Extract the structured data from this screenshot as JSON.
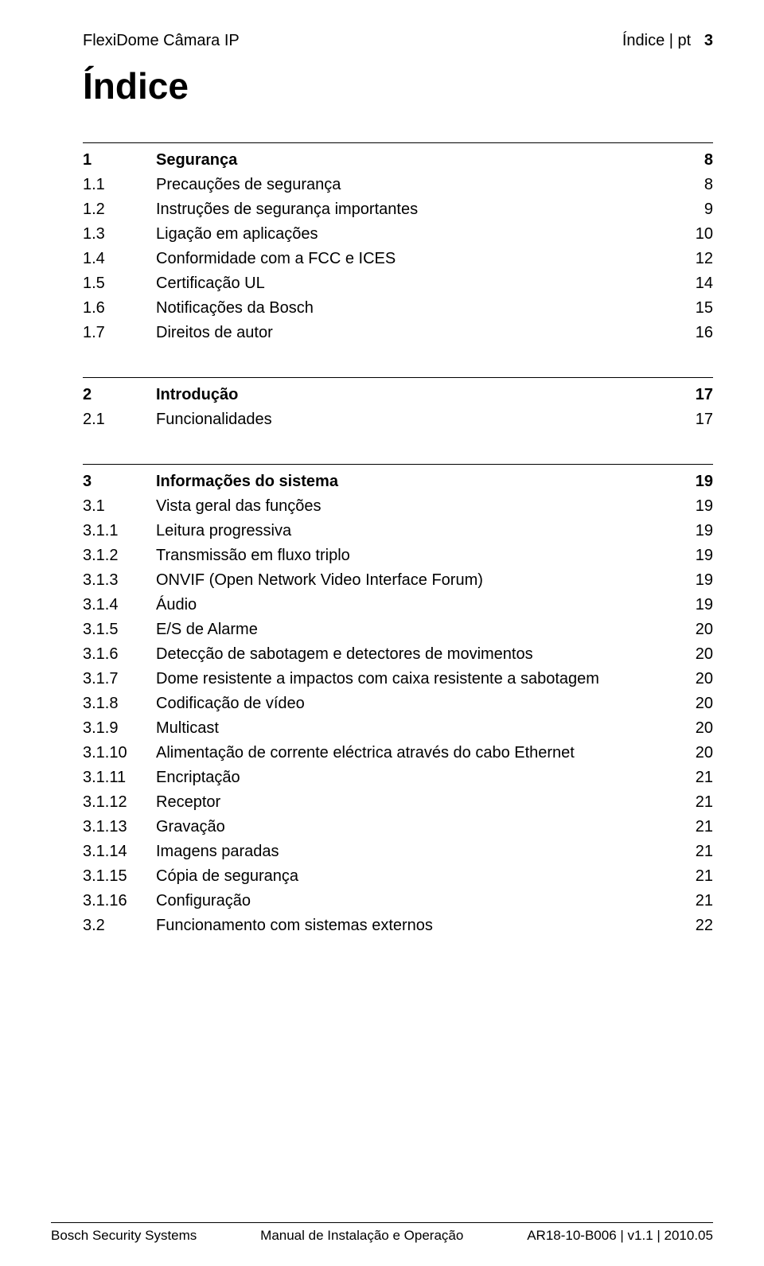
{
  "header": {
    "left": "FlexiDome Câmara IP",
    "right_label": "Índice | pt",
    "page": "3"
  },
  "title": "Índice",
  "g1": {
    "h": {
      "n": "1",
      "t": "Segurança",
      "p": "8"
    },
    "r": [
      {
        "n": "1.1",
        "t": "Precauções de segurança",
        "p": "8"
      },
      {
        "n": "1.2",
        "t": "Instruções de segurança importantes",
        "p": "9"
      },
      {
        "n": "1.3",
        "t": "Ligação em aplicações",
        "p": "10"
      },
      {
        "n": "1.4",
        "t": "Conformidade com a FCC e ICES",
        "p": "12"
      },
      {
        "n": "1.5",
        "t": "Certificação UL",
        "p": "14"
      },
      {
        "n": "1.6",
        "t": "Notificações da Bosch",
        "p": "15"
      },
      {
        "n": "1.7",
        "t": "Direitos de autor",
        "p": "16"
      }
    ]
  },
  "g2": {
    "h": {
      "n": "2",
      "t": "Introdução",
      "p": "17"
    },
    "r": [
      {
        "n": "2.1",
        "t": "Funcionalidades",
        "p": "17"
      }
    ]
  },
  "g3": {
    "h": {
      "n": "3",
      "t": "Informações do sistema",
      "p": "19"
    },
    "r": [
      {
        "n": "3.1",
        "t": "Vista geral das funções",
        "p": "19"
      },
      {
        "n": "3.1.1",
        "t": "Leitura progressiva",
        "p": "19"
      },
      {
        "n": "3.1.2",
        "t": "Transmissão em fluxo triplo",
        "p": "19"
      },
      {
        "n": "3.1.3",
        "t": "ONVIF (Open Network Video Interface Forum)",
        "p": "19"
      },
      {
        "n": "3.1.4",
        "t": "Áudio",
        "p": "19"
      },
      {
        "n": "3.1.5",
        "t": "E/S de Alarme",
        "p": "20"
      },
      {
        "n": "3.1.6",
        "t": "Detecção de sabotagem e detectores de movimentos",
        "p": "20"
      },
      {
        "n": "3.1.7",
        "t": "Dome resistente a impactos com caixa resistente a sabotagem",
        "p": "20"
      },
      {
        "n": "3.1.8",
        "t": "Codificação de vídeo",
        "p": "20"
      },
      {
        "n": "3.1.9",
        "t": "Multicast",
        "p": "20"
      },
      {
        "n": "3.1.10",
        "t": "Alimentação de corrente eléctrica através do cabo Ethernet",
        "p": "20"
      },
      {
        "n": "3.1.11",
        "t": "Encriptação",
        "p": "21"
      },
      {
        "n": "3.1.12",
        "t": "Receptor",
        "p": "21"
      },
      {
        "n": "3.1.13",
        "t": "Gravação",
        "p": "21"
      },
      {
        "n": "3.1.14",
        "t": "Imagens paradas",
        "p": "21"
      },
      {
        "n": "3.1.15",
        "t": "Cópia de segurança",
        "p": "21"
      },
      {
        "n": "3.1.16",
        "t": "Configuração",
        "p": "21"
      },
      {
        "n": "3.2",
        "t": "Funcionamento com sistemas externos",
        "p": "22"
      }
    ]
  },
  "footer": {
    "left": "Bosch Security Systems",
    "center": "Manual de Instalação e Operação",
    "right": "AR18-10-B006 | v1.1 | 2010.05"
  }
}
